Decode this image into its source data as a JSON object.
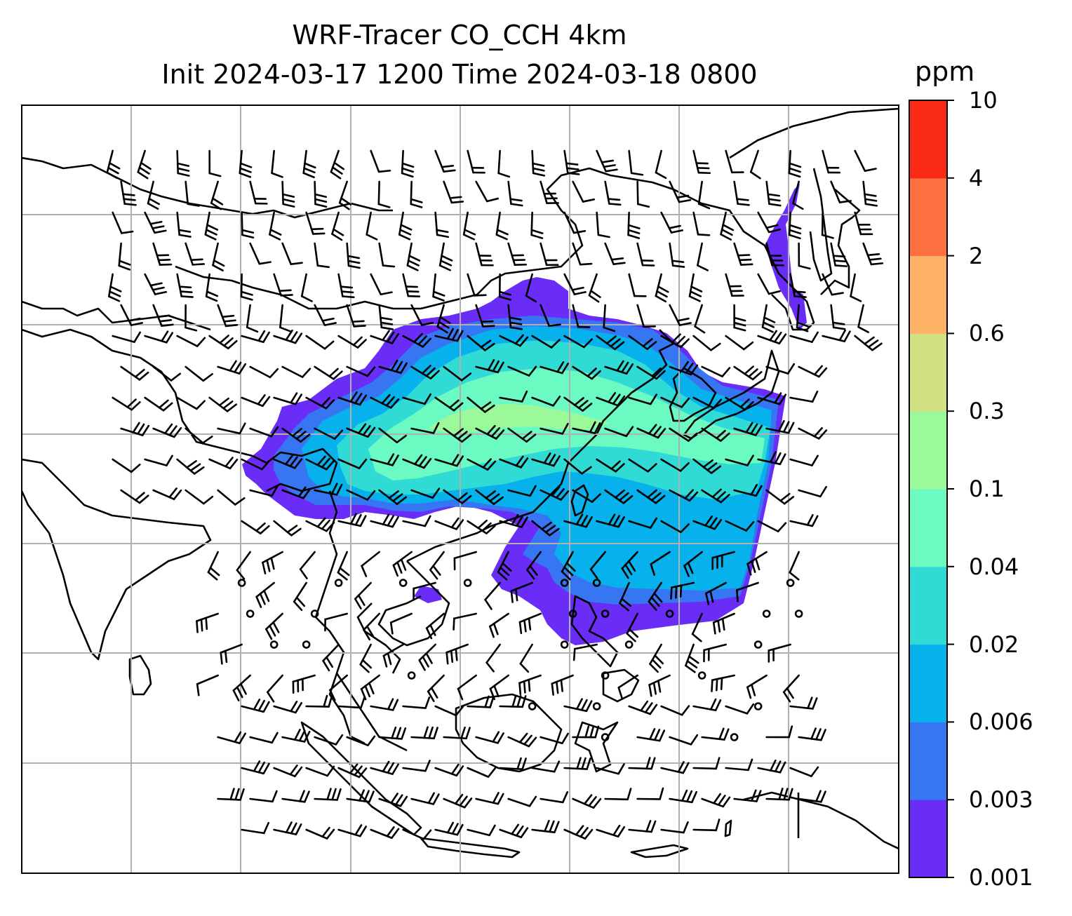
{
  "title": {
    "line1": "WRF-Tracer CO_CCH 4km",
    "line2": "Init 2024-03-17 1200 Time 2024-03-18 0800"
  },
  "colorbar": {
    "unit": "ppm",
    "levels": [
      "0.001",
      "0.003",
      "0.006",
      "0.02",
      "0.04",
      "0.1",
      "0.3",
      "0.6",
      "2",
      "4",
      "10"
    ],
    "colors": [
      "#6a2cf7",
      "#3676f2",
      "#07b1eb",
      "#31dbd5",
      "#6cfac3",
      "#9bf99a",
      "#d1e083",
      "#fdb265",
      "#fd7040",
      "#fb2a15"
    ]
  },
  "map": {
    "region": "East and Southeast Asia",
    "grid": true,
    "coastlines": true,
    "wind_barbs": true,
    "plume_colors": {
      "outer": "#6a2cf7",
      "low": "#3676f2",
      "mid": "#07b1eb",
      "upper": "#31dbd5",
      "core": "#6cfac3",
      "peak": "#9bf99a"
    }
  }
}
